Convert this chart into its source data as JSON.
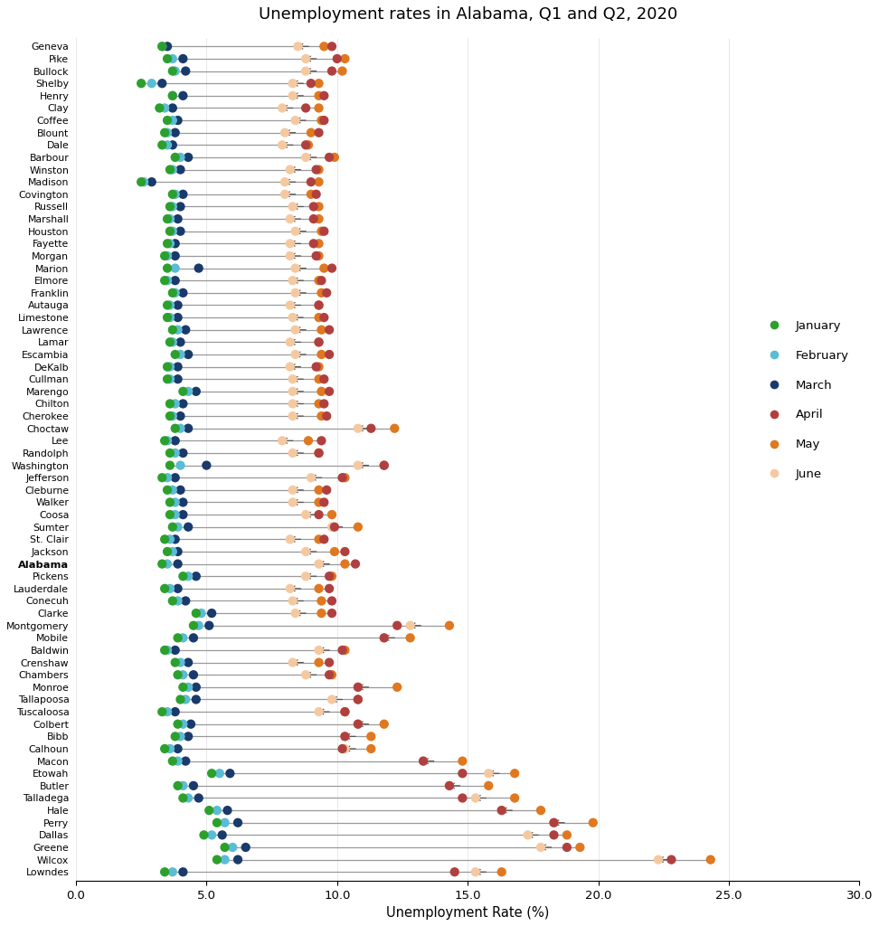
{
  "title": "Unemployment rates in Alabama, Q1 and Q2, 2020",
  "xlabel": "Unemployment Rate (%)",
  "xlim": [
    0,
    30
  ],
  "xticks": [
    0.0,
    5.0,
    10.0,
    15.0,
    20.0,
    25.0,
    30.0
  ],
  "counties": [
    "Geneva",
    "Pike",
    "Bullock",
    "Shelby",
    "Henry",
    "Clay",
    "Coffee",
    "Blount",
    "Dale",
    "Barbour",
    "Winston",
    "Madison",
    "Covington",
    "Russell",
    "Marshall",
    "Houston",
    "Fayette",
    "Morgan",
    "Marion",
    "Elmore",
    "Franklin",
    "Autauga",
    "Limestone",
    "Lawrence",
    "Lamar",
    "Escambia",
    "DeKalb",
    "Cullman",
    "Marengo",
    "Chilton",
    "Cherokee",
    "Choctaw",
    "Lee",
    "Randolph",
    "Washington",
    "Jefferson",
    "Cleburne",
    "Walker",
    "Coosa",
    "Sumter",
    "St. Clair",
    "Jackson",
    "Alabama",
    "Pickens",
    "Lauderdale",
    "Conecuh",
    "Clarke",
    "Montgomery",
    "Mobile",
    "Baldwin",
    "Crenshaw",
    "Chambers",
    "Monroe",
    "Tallapoosa",
    "Tuscaloosa",
    "Colbert",
    "Bibb",
    "Calhoun",
    "Macon",
    "Etowah",
    "Butler",
    "Talladega",
    "Hale",
    "Perry",
    "Dallas",
    "Greene",
    "Wilcox",
    "Lowndes"
  ],
  "data": {
    "January": [
      3.3,
      3.5,
      3.7,
      2.5,
      3.7,
      3.2,
      3.5,
      3.4,
      3.3,
      3.8,
      3.6,
      2.5,
      3.7,
      3.6,
      3.5,
      3.6,
      3.5,
      3.4,
      3.5,
      3.4,
      3.7,
      3.5,
      3.5,
      3.7,
      3.6,
      3.8,
      3.5,
      3.5,
      4.1,
      3.6,
      3.6,
      3.8,
      3.4,
      3.6,
      3.6,
      3.3,
      3.5,
      3.6,
      3.6,
      3.7,
      3.4,
      3.5,
      3.3,
      4.1,
      3.4,
      3.7,
      4.6,
      4.5,
      3.9,
      3.4,
      3.8,
      3.9,
      4.1,
      4.0,
      3.3,
      3.9,
      3.8,
      3.4,
      3.7,
      5.2,
      3.9,
      4.1,
      5.1,
      5.4,
      4.9,
      5.7,
      5.4,
      3.4
    ],
    "February": [
      3.3,
      3.7,
      3.8,
      2.9,
      3.7,
      3.4,
      3.7,
      3.5,
      3.5,
      4.0,
      3.7,
      2.6,
      3.8,
      3.7,
      3.6,
      3.7,
      3.6,
      3.5,
      3.8,
      3.5,
      3.8,
      3.6,
      3.6,
      3.9,
      3.7,
      4.0,
      3.6,
      3.6,
      4.3,
      3.8,
      3.7,
      4.0,
      3.5,
      3.8,
      4.0,
      3.5,
      3.7,
      3.8,
      3.8,
      3.9,
      3.6,
      3.7,
      3.5,
      4.3,
      3.6,
      3.9,
      4.8,
      4.7,
      4.1,
      3.5,
      4.0,
      4.1,
      4.3,
      4.2,
      3.5,
      4.1,
      4.0,
      3.6,
      3.9,
      5.5,
      4.1,
      4.3,
      5.4,
      5.7,
      5.2,
      6.0,
      5.7,
      3.7
    ],
    "March": [
      3.5,
      4.1,
      4.2,
      3.3,
      4.1,
      3.7,
      3.9,
      3.8,
      3.7,
      4.3,
      4.0,
      2.9,
      4.1,
      4.0,
      3.9,
      4.0,
      3.8,
      3.8,
      4.7,
      3.8,
      4.1,
      3.9,
      3.9,
      4.2,
      4.0,
      4.3,
      3.9,
      3.9,
      4.6,
      4.1,
      4.0,
      4.3,
      3.8,
      4.1,
      5.0,
      3.8,
      4.0,
      4.1,
      4.1,
      4.3,
      3.8,
      3.9,
      3.9,
      4.6,
      3.9,
      4.2,
      5.2,
      5.1,
      4.5,
      3.8,
      4.3,
      4.5,
      4.6,
      4.6,
      3.8,
      4.4,
      4.3,
      3.9,
      4.2,
      5.9,
      4.5,
      4.7,
      5.8,
      6.2,
      5.6,
      6.5,
      6.2,
      4.1
    ],
    "April": [
      9.8,
      10.0,
      9.8,
      9.0,
      9.5,
      8.8,
      9.5,
      9.3,
      8.8,
      9.7,
      9.2,
      9.0,
      9.2,
      9.1,
      9.1,
      9.5,
      9.1,
      9.2,
      9.8,
      9.4,
      9.6,
      9.3,
      9.5,
      9.7,
      9.3,
      9.7,
      9.2,
      9.5,
      9.7,
      9.5,
      9.6,
      11.3,
      9.4,
      9.3,
      11.8,
      10.2,
      9.6,
      9.5,
      9.3,
      9.9,
      9.5,
      10.3,
      10.7,
      9.7,
      9.7,
      9.8,
      9.8,
      12.3,
      11.8,
      10.2,
      9.7,
      9.7,
      10.8,
      10.8,
      10.3,
      10.8,
      10.3,
      10.2,
      13.3,
      14.8,
      14.3,
      14.8,
      16.3,
      18.3,
      18.3,
      18.8,
      22.8,
      14.5
    ],
    "May": [
      9.5,
      10.3,
      10.2,
      9.3,
      9.3,
      9.3,
      9.4,
      9.0,
      8.9,
      9.9,
      9.3,
      9.3,
      9.0,
      9.3,
      9.3,
      9.4,
      9.3,
      9.3,
      9.5,
      9.3,
      9.4,
      9.3,
      9.3,
      9.4,
      9.3,
      9.4,
      9.3,
      9.3,
      9.4,
      9.3,
      9.4,
      12.2,
      8.9,
      9.3,
      11.8,
      10.3,
      9.3,
      9.3,
      9.8,
      10.8,
      9.3,
      9.9,
      10.3,
      9.8,
      9.3,
      9.4,
      9.4,
      14.3,
      12.8,
      10.3,
      9.3,
      9.8,
      12.3,
      10.8,
      10.3,
      11.8,
      11.3,
      11.3,
      14.8,
      16.8,
      15.8,
      16.8,
      17.8,
      19.8,
      18.8,
      19.3,
      24.3,
      16.3
    ],
    "June": [
      8.5,
      8.8,
      8.8,
      8.3,
      8.3,
      7.9,
      8.4,
      8.0,
      7.9,
      8.8,
      8.2,
      8.0,
      8.0,
      8.3,
      8.2,
      8.4,
      8.2,
      8.2,
      8.4,
      8.3,
      8.4,
      8.2,
      8.3,
      8.4,
      8.2,
      8.4,
      8.2,
      8.3,
      8.3,
      8.3,
      8.3,
      10.8,
      7.9,
      8.3,
      10.8,
      9.0,
      8.3,
      8.3,
      8.8,
      9.8,
      8.2,
      8.8,
      9.3,
      8.8,
      8.2,
      8.3,
      8.4,
      12.8,
      11.8,
      9.3,
      8.3,
      8.8,
      10.8,
      9.8,
      9.3,
      10.8,
      10.3,
      10.3,
      13.3,
      15.8,
      14.3,
      15.3,
      16.3,
      18.3,
      17.3,
      17.8,
      22.3,
      15.3
    ]
  },
  "colors": {
    "January": "#2ca02c",
    "February": "#5bbcd6",
    "March": "#1a3a6b",
    "April": "#b04040",
    "May": "#e07820",
    "June": "#f5c9a0"
  },
  "marker_size": 55,
  "background_color": "#ffffff"
}
